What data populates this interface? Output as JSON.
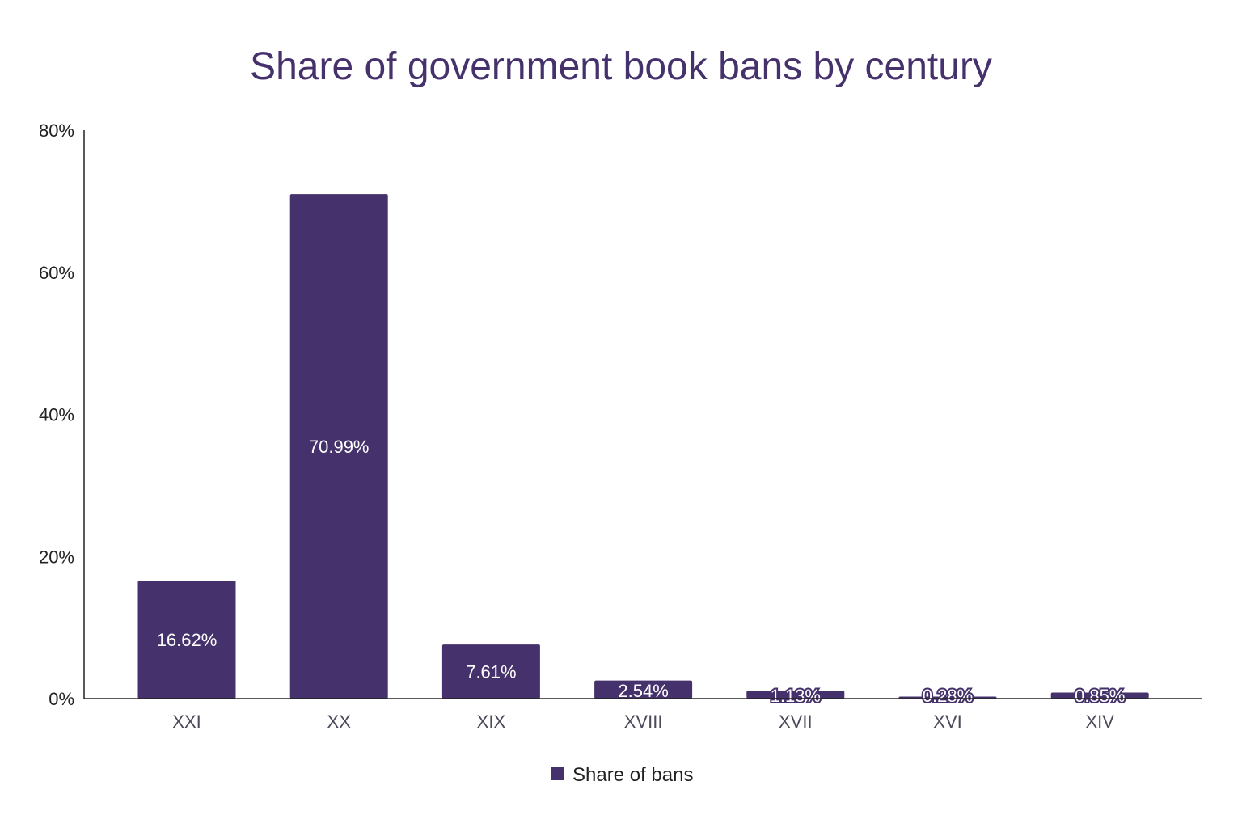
{
  "chart_data": {
    "type": "bar",
    "title": "Share of government book bans by century",
    "categories": [
      "XXI",
      "XX",
      "XIX",
      "XVIII",
      "XVII",
      "XVI",
      "XIV"
    ],
    "series": [
      {
        "name": "Share of bans",
        "values": [
          16.62,
          70.99,
          7.61,
          2.54,
          1.13,
          0.28,
          0.85
        ]
      }
    ],
    "data_labels": [
      "16.62%",
      "70.99%",
      "7.61%",
      "2.54%",
      "1.13%",
      "0.28%",
      "0.85%"
    ],
    "ylim": [
      0,
      80
    ],
    "yticks": [
      0,
      20,
      40,
      60,
      80
    ],
    "ytick_labels": [
      "0%",
      "20%",
      "40%",
      "60%",
      "80%"
    ],
    "xlabel": "",
    "ylabel": "",
    "grid": false,
    "legend_placement": "bottom",
    "colors": {
      "bar": "#45316b",
      "title": "#45316b",
      "axis_text": "#222222",
      "category_text": "#4a4a5a"
    }
  }
}
